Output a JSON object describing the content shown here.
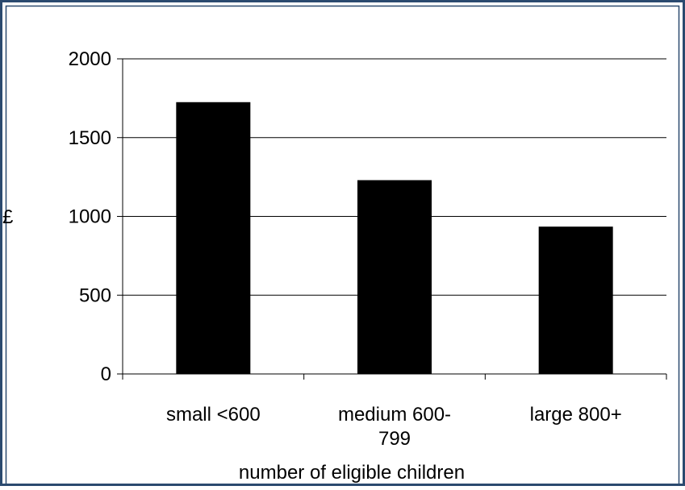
{
  "chart_data": {
    "type": "bar",
    "title": "",
    "ylabel": "£",
    "xlabel": "number of eligible children",
    "categories": [
      "small <600",
      "medium 600-799",
      "large 800+"
    ],
    "category_lines": [
      [
        "small <600"
      ],
      [
        "medium 600-",
        "799"
      ],
      [
        "large 800+"
      ]
    ],
    "values": [
      1725,
      1230,
      935
    ],
    "ylim": [
      0,
      2000
    ],
    "yticks": [
      0,
      500,
      1000,
      1500,
      2000
    ],
    "grid": "horizontal",
    "legend": "none",
    "bar_color": "#000000",
    "frame_color": "#2b4a6f"
  }
}
